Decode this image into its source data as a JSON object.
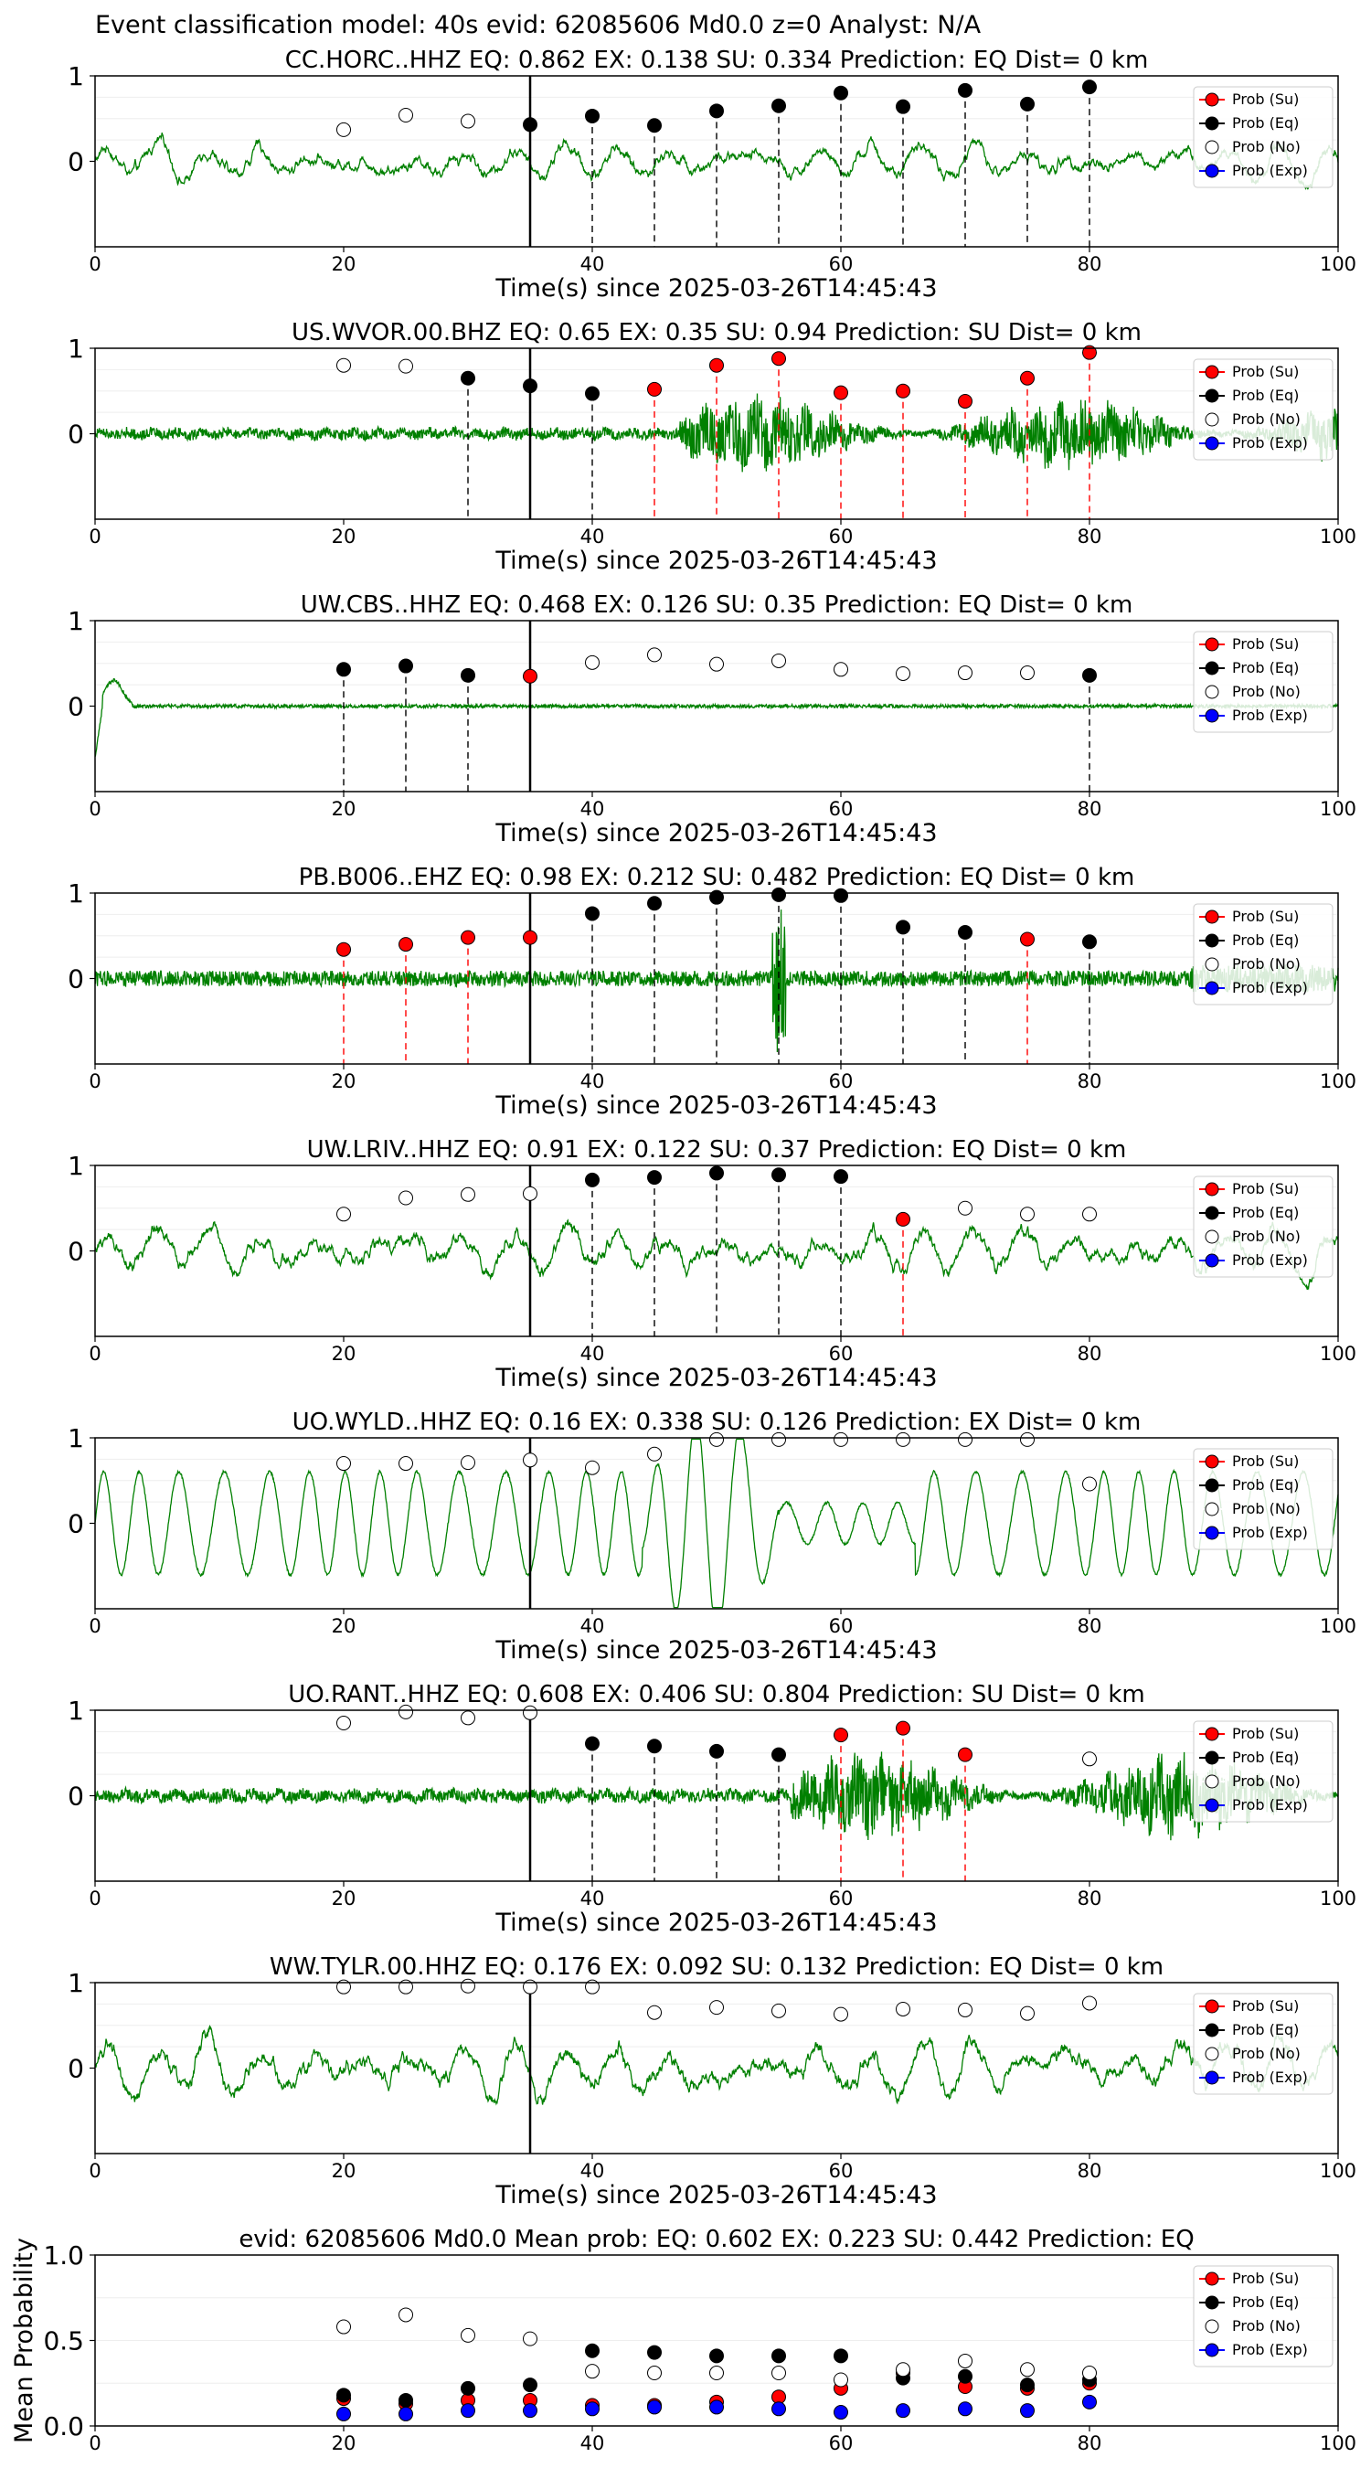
{
  "suptitle": "Event classification model: 40s evid: 62085606 Md0.0 z=0 Analyst: N/A",
  "legend_labels": [
    "Prob (Su)",
    "Prob (Eq)",
    "Prob (No)",
    "Prob (Exp)"
  ],
  "colors": {
    "su": "#ff0000",
    "eq": "#000000",
    "no": "#ffffff",
    "exp": "#0000ff",
    "waveform": "#008000",
    "su_line": "#ff0000",
    "eq_line": "#000000"
  },
  "chart_data": [
    {
      "type": "scatter",
      "title": "CC.HORC..HHZ   EQ: 0.862  EX: 0.138  SU: 0.334   Prediction: EQ    Dist= 0 km",
      "xlabel": "Time(s) since 2025-03-26T14:45:43",
      "ylabel": "",
      "xlim": [
        0,
        100
      ],
      "ylim": [
        -1,
        1
      ],
      "xticks": [
        "0",
        "20",
        "40",
        "60",
        "80",
        "100"
      ],
      "yticks": [
        "1",
        "0"
      ],
      "pick_time": 35,
      "waveform": {
        "amplitude": 0.35,
        "style": "mixed"
      },
      "points": [
        {
          "x": 20,
          "y": 0.37,
          "class": "no"
        },
        {
          "x": 25,
          "y": 0.54,
          "class": "no"
        },
        {
          "x": 30,
          "y": 0.47,
          "class": "no"
        },
        {
          "x": 35,
          "y": 0.43,
          "class": "eq"
        },
        {
          "x": 40,
          "y": 0.53,
          "class": "eq"
        },
        {
          "x": 45,
          "y": 0.42,
          "class": "eq"
        },
        {
          "x": 50,
          "y": 0.59,
          "class": "eq"
        },
        {
          "x": 55,
          "y": 0.65,
          "class": "eq"
        },
        {
          "x": 60,
          "y": 0.8,
          "class": "eq"
        },
        {
          "x": 65,
          "y": 0.64,
          "class": "eq"
        },
        {
          "x": 70,
          "y": 0.83,
          "class": "eq"
        },
        {
          "x": 75,
          "y": 0.67,
          "class": "eq"
        },
        {
          "x": 80,
          "y": 0.87,
          "class": "eq"
        }
      ]
    },
    {
      "type": "scatter",
      "title": "US.WVOR.00.BHZ   EQ: 0.65  EX: 0.35  SU: 0.94   Prediction: SU    Dist= 0 km",
      "xlabel": "Time(s) since 2025-03-26T14:45:43",
      "ylabel": "",
      "xlim": [
        0,
        100
      ],
      "ylim": [
        -1,
        1
      ],
      "xticks": [
        "0",
        "20",
        "40",
        "60",
        "80",
        "100"
      ],
      "yticks": [
        "1",
        "0"
      ],
      "pick_time": 35,
      "waveform": {
        "amplitude": 0.06,
        "style": "burst",
        "burst_start": 47,
        "burst_amp": 0.35
      },
      "points": [
        {
          "x": 20,
          "y": 0.8,
          "class": "no"
        },
        {
          "x": 25,
          "y": 0.79,
          "class": "no"
        },
        {
          "x": 30,
          "y": 0.65,
          "class": "eq"
        },
        {
          "x": 35,
          "y": 0.56,
          "class": "eq"
        },
        {
          "x": 40,
          "y": 0.47,
          "class": "eq"
        },
        {
          "x": 45,
          "y": 0.52,
          "class": "su"
        },
        {
          "x": 50,
          "y": 0.8,
          "class": "su"
        },
        {
          "x": 55,
          "y": 0.88,
          "class": "su"
        },
        {
          "x": 60,
          "y": 0.48,
          "class": "su"
        },
        {
          "x": 65,
          "y": 0.5,
          "class": "su"
        },
        {
          "x": 70,
          "y": 0.38,
          "class": "su"
        },
        {
          "x": 75,
          "y": 0.65,
          "class": "su"
        },
        {
          "x": 80,
          "y": 0.95,
          "class": "su"
        }
      ]
    },
    {
      "type": "scatter",
      "title": "UW.CBS..HHZ   EQ: 0.468  EX: 0.126  SU: 0.35   Prediction: EQ    Dist= 0 km",
      "xlabel": "Time(s) since 2025-03-26T14:45:43",
      "ylabel": "",
      "xlim": [
        0,
        100
      ],
      "ylim": [
        -1,
        1
      ],
      "xticks": [
        "0",
        "20",
        "40",
        "60",
        "80",
        "100"
      ],
      "yticks": [
        "1",
        "0"
      ],
      "pick_time": 35,
      "waveform": {
        "amplitude": 0.04,
        "style": "quiet"
      },
      "points": [
        {
          "x": 20,
          "y": 0.43,
          "class": "eq"
        },
        {
          "x": 25,
          "y": 0.47,
          "class": "eq"
        },
        {
          "x": 30,
          "y": 0.36,
          "class": "eq"
        },
        {
          "x": 35,
          "y": 0.35,
          "class": "su"
        },
        {
          "x": 40,
          "y": 0.51,
          "class": "no"
        },
        {
          "x": 45,
          "y": 0.6,
          "class": "no"
        },
        {
          "x": 50,
          "y": 0.49,
          "class": "no"
        },
        {
          "x": 55,
          "y": 0.53,
          "class": "no"
        },
        {
          "x": 60,
          "y": 0.43,
          "class": "no"
        },
        {
          "x": 65,
          "y": 0.38,
          "class": "no"
        },
        {
          "x": 70,
          "y": 0.39,
          "class": "no"
        },
        {
          "x": 75,
          "y": 0.39,
          "class": "no"
        },
        {
          "x": 80,
          "y": 0.36,
          "class": "eq"
        }
      ]
    },
    {
      "type": "scatter",
      "title": "PB.B006..EHZ   EQ: 0.98  EX: 0.212  SU: 0.482   Prediction: EQ    Dist= 0 km",
      "xlabel": "Time(s) since 2025-03-26T14:45:43",
      "ylabel": "",
      "xlim": [
        0,
        100
      ],
      "ylim": [
        -1,
        1
      ],
      "xticks": [
        "0",
        "20",
        "40",
        "60",
        "80",
        "100"
      ],
      "yticks": [
        "1",
        "0"
      ],
      "pick_time": 35,
      "waveform": {
        "amplitude": 0.09,
        "style": "noisy",
        "spike": 55
      },
      "points": [
        {
          "x": 20,
          "y": 0.34,
          "class": "su"
        },
        {
          "x": 25,
          "y": 0.4,
          "class": "su"
        },
        {
          "x": 30,
          "y": 0.48,
          "class": "su"
        },
        {
          "x": 35,
          "y": 0.48,
          "class": "su"
        },
        {
          "x": 40,
          "y": 0.76,
          "class": "eq"
        },
        {
          "x": 45,
          "y": 0.88,
          "class": "eq"
        },
        {
          "x": 50,
          "y": 0.95,
          "class": "eq"
        },
        {
          "x": 55,
          "y": 0.98,
          "class": "eq"
        },
        {
          "x": 60,
          "y": 0.97,
          "class": "eq"
        },
        {
          "x": 65,
          "y": 0.6,
          "class": "eq"
        },
        {
          "x": 70,
          "y": 0.54,
          "class": "eq"
        },
        {
          "x": 75,
          "y": 0.46,
          "class": "su"
        },
        {
          "x": 80,
          "y": 0.43,
          "class": "eq"
        }
      ]
    },
    {
      "type": "scatter",
      "title": "UW.LRIV..HHZ   EQ: 0.91  EX: 0.122  SU: 0.37   Prediction: EQ    Dist= 0 km",
      "xlabel": "Time(s) since 2025-03-26T14:45:43",
      "ylabel": "",
      "xlim": [
        0,
        100
      ],
      "ylim": [
        -1,
        1
      ],
      "xticks": [
        "0",
        "20",
        "40",
        "60",
        "80",
        "100"
      ],
      "yticks": [
        "1",
        "0"
      ],
      "pick_time": 35,
      "waveform": {
        "amplitude": 0.42,
        "style": "mixed"
      },
      "points": [
        {
          "x": 20,
          "y": 0.43,
          "class": "no"
        },
        {
          "x": 25,
          "y": 0.62,
          "class": "no"
        },
        {
          "x": 30,
          "y": 0.66,
          "class": "no"
        },
        {
          "x": 35,
          "y": 0.67,
          "class": "no"
        },
        {
          "x": 40,
          "y": 0.83,
          "class": "eq"
        },
        {
          "x": 45,
          "y": 0.86,
          "class": "eq"
        },
        {
          "x": 50,
          "y": 0.91,
          "class": "eq"
        },
        {
          "x": 55,
          "y": 0.89,
          "class": "eq"
        },
        {
          "x": 60,
          "y": 0.87,
          "class": "eq"
        },
        {
          "x": 65,
          "y": 0.37,
          "class": "su"
        },
        {
          "x": 70,
          "y": 0.5,
          "class": "no"
        },
        {
          "x": 75,
          "y": 0.43,
          "class": "no"
        },
        {
          "x": 80,
          "y": 0.43,
          "class": "no"
        }
      ]
    },
    {
      "type": "scatter",
      "title": "UO.WYLD..HHZ   EQ: 0.16  EX: 0.338  SU: 0.126   Prediction: EX    Dist= 0 km",
      "xlabel": "Time(s) since 2025-03-26T14:45:43",
      "ylabel": "",
      "xlim": [
        0,
        100
      ],
      "ylim": [
        -1,
        1
      ],
      "xticks": [
        "0",
        "20",
        "40",
        "60",
        "80",
        "100"
      ],
      "yticks": [
        "1",
        "0"
      ],
      "pick_time": 35,
      "waveform": {
        "amplitude": 0.6,
        "style": "sine"
      },
      "points": [
        {
          "x": 20,
          "y": 0.7,
          "class": "no"
        },
        {
          "x": 25,
          "y": 0.7,
          "class": "no"
        },
        {
          "x": 30,
          "y": 0.71,
          "class": "no"
        },
        {
          "x": 35,
          "y": 0.74,
          "class": "no"
        },
        {
          "x": 40,
          "y": 0.65,
          "class": "no"
        },
        {
          "x": 45,
          "y": 0.81,
          "class": "no"
        },
        {
          "x": 50,
          "y": 0.98,
          "class": "no"
        },
        {
          "x": 55,
          "y": 0.98,
          "class": "no"
        },
        {
          "x": 60,
          "y": 0.98,
          "class": "no"
        },
        {
          "x": 65,
          "y": 0.98,
          "class": "no"
        },
        {
          "x": 70,
          "y": 0.98,
          "class": "no"
        },
        {
          "x": 75,
          "y": 0.98,
          "class": "no"
        },
        {
          "x": 80,
          "y": 0.46,
          "class": "no"
        }
      ]
    },
    {
      "type": "scatter",
      "title": "UO.RANT..HHZ   EQ: 0.608  EX: 0.406  SU: 0.804   Prediction: SU    Dist= 0 km",
      "xlabel": "Time(s) since 2025-03-26T14:45:43",
      "ylabel": "",
      "xlim": [
        0,
        100
      ],
      "ylim": [
        -1,
        1
      ],
      "xticks": [
        "0",
        "20",
        "40",
        "60",
        "80",
        "100"
      ],
      "yticks": [
        "1",
        "0"
      ],
      "pick_time": 35,
      "waveform": {
        "amplitude": 0.07,
        "style": "burst",
        "burst_start": 56,
        "burst_amp": 0.4
      },
      "points": [
        {
          "x": 20,
          "y": 0.85,
          "class": "no"
        },
        {
          "x": 25,
          "y": 0.98,
          "class": "no"
        },
        {
          "x": 30,
          "y": 0.91,
          "class": "no"
        },
        {
          "x": 35,
          "y": 0.97,
          "class": "no"
        },
        {
          "x": 40,
          "y": 0.61,
          "class": "eq"
        },
        {
          "x": 45,
          "y": 0.58,
          "class": "eq"
        },
        {
          "x": 50,
          "y": 0.52,
          "class": "eq"
        },
        {
          "x": 55,
          "y": 0.48,
          "class": "eq"
        },
        {
          "x": 60,
          "y": 0.71,
          "class": "su"
        },
        {
          "x": 65,
          "y": 0.79,
          "class": "su"
        },
        {
          "x": 70,
          "y": 0.48,
          "class": "su"
        },
        {
          "x": 80,
          "y": 0.43,
          "class": "no"
        }
      ]
    },
    {
      "type": "scatter",
      "title": "WW.TYLR.00.HHZ   EQ: 0.176  EX: 0.092  SU: 0.132   Prediction: EQ    Dist= 0 km",
      "xlabel": "Time(s) since 2025-03-26T14:45:43",
      "ylabel": "",
      "xlim": [
        0,
        100
      ],
      "ylim": [
        -1,
        1
      ],
      "xticks": [
        "0",
        "20",
        "40",
        "60",
        "80",
        "100"
      ],
      "yticks": [
        "1",
        "0"
      ],
      "pick_time": 35,
      "waveform": {
        "amplitude": 0.5,
        "style": "mixed"
      },
      "points": [
        {
          "x": 20,
          "y": 0.95,
          "class": "no"
        },
        {
          "x": 25,
          "y": 0.95,
          "class": "no"
        },
        {
          "x": 30,
          "y": 0.96,
          "class": "no"
        },
        {
          "x": 35,
          "y": 0.95,
          "class": "no"
        },
        {
          "x": 40,
          "y": 0.95,
          "class": "no"
        },
        {
          "x": 45,
          "y": 0.65,
          "class": "no"
        },
        {
          "x": 50,
          "y": 0.71,
          "class": "no"
        },
        {
          "x": 55,
          "y": 0.67,
          "class": "no"
        },
        {
          "x": 60,
          "y": 0.63,
          "class": "no"
        },
        {
          "x": 65,
          "y": 0.69,
          "class": "no"
        },
        {
          "x": 70,
          "y": 0.68,
          "class": "no"
        },
        {
          "x": 75,
          "y": 0.64,
          "class": "no"
        },
        {
          "x": 80,
          "y": 0.76,
          "class": "no"
        }
      ]
    },
    {
      "type": "scatter",
      "title": "evid: 62085606  Md0.0   Mean prob:    EQ: 0.602  EX: 0.223  SU: 0.442   Prediction: EQ",
      "xlabel": "",
      "ylabel": "Mean Probability",
      "xlim": [
        0,
        100
      ],
      "ylim": [
        0,
        1
      ],
      "xticks": [
        "0",
        "20",
        "40",
        "60",
        "80",
        "100"
      ],
      "yticks": [
        "1.0",
        "0.5",
        "0.0"
      ],
      "x": [
        20,
        25,
        30,
        35,
        40,
        45,
        50,
        55,
        60,
        65,
        70,
        75,
        80
      ],
      "series": [
        {
          "name": "Prob (Su)",
          "class": "su",
          "values": [
            0.16,
            0.13,
            0.15,
            0.15,
            0.12,
            0.12,
            0.14,
            0.17,
            0.22,
            0.31,
            0.23,
            0.22,
            0.25
          ]
        },
        {
          "name": "Prob (Eq)",
          "class": "eq",
          "values": [
            0.18,
            0.15,
            0.22,
            0.24,
            0.44,
            0.43,
            0.41,
            0.41,
            0.41,
            0.28,
            0.29,
            0.24,
            0.27
          ]
        },
        {
          "name": "Prob (No)",
          "class": "no",
          "values": [
            0.58,
            0.65,
            0.53,
            0.51,
            0.32,
            0.31,
            0.31,
            0.31,
            0.27,
            0.33,
            0.38,
            0.33,
            0.31
          ]
        },
        {
          "name": "Prob (Exp)",
          "class": "exp",
          "values": [
            0.07,
            0.07,
            0.09,
            0.09,
            0.1,
            0.11,
            0.11,
            0.1,
            0.08,
            0.09,
            0.1,
            0.09,
            0.14
          ]
        }
      ]
    }
  ]
}
